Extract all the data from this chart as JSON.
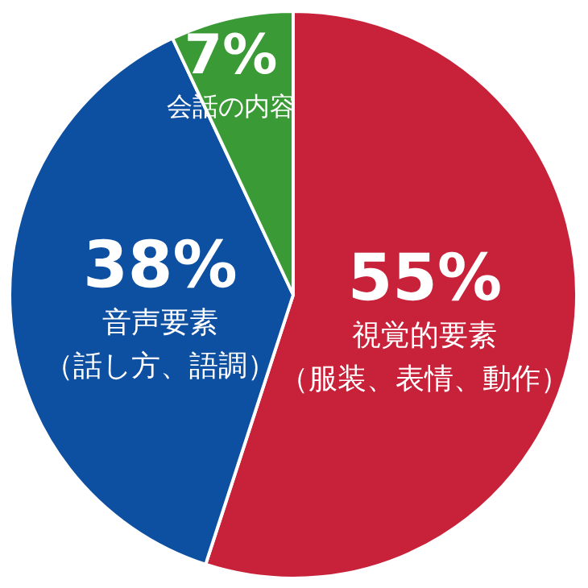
{
  "chart_data": {
    "type": "pie",
    "categories": [
      "視覚的要素（服装、表情、動作）",
      "音声要素（話し方、語調）",
      "会話の内容"
    ],
    "values": [
      55,
      38,
      7
    ],
    "value_labels": [
      "55%",
      "38%",
      "7%"
    ],
    "colors": [
      "#c8213a",
      "#0d4fa0",
      "#3a9a35"
    ]
  }
}
